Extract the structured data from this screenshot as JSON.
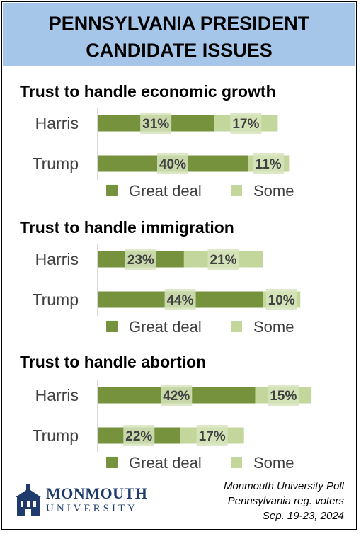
{
  "header": {
    "title_line1": "PENNSYLVANIA PRESIDENT",
    "title_line2": "CANDIDATE ISSUES"
  },
  "colors": {
    "great_deal": "#76923c",
    "some": "#c3d69b",
    "label_box": "#d7e4bd",
    "header_bg": "#a5c5e9"
  },
  "chart_data": [
    {
      "type": "bar",
      "orientation": "horizontal",
      "stacked": true,
      "title": "Trust to handle economic growth",
      "categories": [
        "Harris",
        "Trump"
      ],
      "series": [
        {
          "name": "Great deal",
          "values": [
            31,
            40
          ]
        },
        {
          "name": "Some",
          "values": [
            17,
            11
          ]
        }
      ],
      "value_suffix": "%",
      "legend_position": "bottom"
    },
    {
      "type": "bar",
      "orientation": "horizontal",
      "stacked": true,
      "title": "Trust to handle immigration",
      "categories": [
        "Harris",
        "Trump"
      ],
      "series": [
        {
          "name": "Great deal",
          "values": [
            23,
            44
          ]
        },
        {
          "name": "Some",
          "values": [
            21,
            10
          ]
        }
      ],
      "value_suffix": "%",
      "legend_position": "bottom"
    },
    {
      "type": "bar",
      "orientation": "horizontal",
      "stacked": true,
      "title": "Trust to handle abortion",
      "categories": [
        "Harris",
        "Trump"
      ],
      "series": [
        {
          "name": "Great deal",
          "values": [
            42,
            22
          ]
        },
        {
          "name": "Some",
          "values": [
            15,
            17
          ]
        }
      ],
      "value_suffix": "%",
      "legend_position": "bottom"
    }
  ],
  "logo": {
    "line1": "MONMOUTH",
    "line2": "UNIVERSITY"
  },
  "source": {
    "line1": "Monmouth University Poll",
    "line2": "Pennsylvania reg. voters",
    "line3": "Sep. 19-23, 2024"
  }
}
